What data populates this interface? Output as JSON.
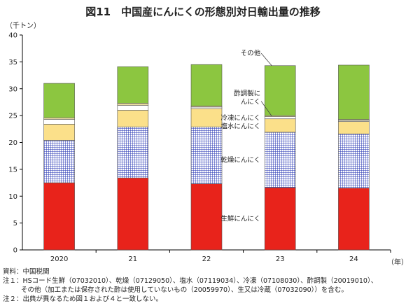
{
  "title": "図11　中国産にんにくの形態別対日輸出量の推移",
  "notes": {
    "source": "資料：中国税関",
    "note1": "注１：HSコード生鮮（07032010）、乾燥（07129050）、塩水（07119034）、冷凍（07108030）、酢調製（20019010）、",
    "note1_cont": "その他（加工または保存された酢は使用していないもの（20059970）、生又は冷蔵（07032090））を含む。",
    "note2": "注２：出典が異なるため図１および４と一致しない。"
  },
  "chart_data": {
    "type": "bar",
    "stacked": true,
    "ylabel": "（千トン）",
    "xlabel": "（年）",
    "ylim": [
      0,
      40
    ],
    "yticks": [
      0,
      5,
      10,
      15,
      20,
      25,
      30,
      35,
      40
    ],
    "grid": false,
    "categories": [
      "2020",
      "21",
      "22",
      "23",
      "24"
    ],
    "series": [
      {
        "name": "生鮮にんにく",
        "color": "#e8231b",
        "pattern": "solid",
        "values": [
          12.5,
          13.4,
          12.3,
          11.6,
          11.5
        ]
      },
      {
        "name": "乾燥にんにく",
        "color": "#1f2fb0",
        "pattern": "grid",
        "values": [
          7.9,
          9.5,
          10.6,
          10.3,
          10.1
        ]
      },
      {
        "name": "塩水にんにく",
        "color": "#fbe08a",
        "pattern": "solid",
        "values": [
          3.0,
          3.1,
          3.4,
          2.5,
          2.3
        ]
      },
      {
        "name": "冷凍にんにく",
        "color": "#ffffff",
        "pattern": "solid",
        "values": [
          0.9,
          0.9,
          0.3,
          0.4,
          0.2
        ]
      },
      {
        "name": "酢調製にんにく",
        "color": "#e8d9a0",
        "pattern": "solid",
        "values": [
          0.3,
          0.4,
          0.2,
          0.2,
          0.2
        ]
      },
      {
        "name": "その他",
        "color": "#8cc640",
        "pattern": "solid",
        "values": [
          6.4,
          6.8,
          7.7,
          9.3,
          10.1
        ]
      }
    ],
    "labels": {
      "other": "その他",
      "vinegar_line1": "酢調製に",
      "vinegar_line2": "んにく",
      "frozen": "冷凍にんにく",
      "brine": "塩水にんにく",
      "dried": "乾燥にんにく",
      "fresh": "生鮮にんにく"
    }
  }
}
